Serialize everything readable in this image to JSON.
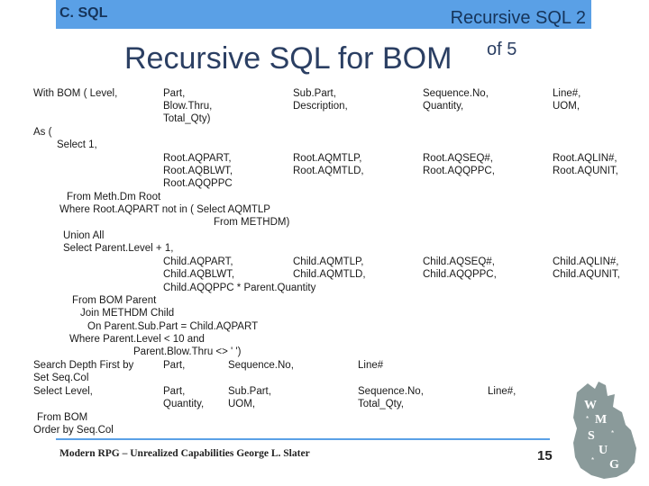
{
  "header": {
    "section": "C. SQL",
    "slide": "Recursive SQL 2"
  },
  "title": {
    "main": "Recursive SQL for BOM",
    "sup": "of 5"
  },
  "code": {
    "l1": [
      "With BOM ( Level,",
      "Part,",
      "Sub.Part,",
      "Sequence.No,",
      "Line#,"
    ],
    "l2": [
      "Blow.Thru,",
      "Description,",
      "Quantity,",
      "UOM,"
    ],
    "l3": "Total_Qty)",
    "l4": "As (",
    "l5": "Select 1,",
    "l6": [
      "Root.AQPART,",
      "Root.AQMTLP,",
      "Root.AQSEQ#,",
      "Root.AQLIN#,"
    ],
    "l7": [
      "Root.AQBLWT,",
      "Root.AQMTLD,",
      "Root.AQQPPC,",
      "Root.AQUNIT,"
    ],
    "l8": "Root.AQQPPC",
    "l9": "From   Meth.Dm Root",
    "l10": "Where   Root.AQPART not in ( Select AQMTLP",
    "l11": "From METHDM)",
    "l12": "Union All",
    "l13": "Select   Parent.Level + 1,",
    "l14": [
      "Child.AQPART,",
      "Child.AQMTLP,",
      "Child.AQSEQ#,",
      "Child.AQLIN#,"
    ],
    "l15": [
      "Child.AQBLWT,",
      "Child.AQMTLD,",
      "Child.AQQPPC,",
      "Child.AQUNIT,"
    ],
    "l16": "Child.AQQPPC * Parent.Quantity",
    "l17": "From   BOM Parent",
    "l18": "Join   METHDM Child",
    "l19": "On   Parent.Sub.Part = Child.AQPART",
    "l20": "Where   Parent.Level < 10 and",
    "l21": "Parent.Blow.Thru <> ' ')",
    "l22": [
      "Search Depth First by",
      "Part,",
      "Sequence.No,",
      "Line#"
    ],
    "l23": "Set Seq.Col",
    "l24": [
      "Select  Level,",
      "Part,",
      "Sub.Part,",
      "Sequence.No,",
      "Line#,"
    ],
    "l25": [
      "Quantity,",
      "UOM,",
      "Total_Qty,"
    ],
    "l26": "From BOM",
    "l27": "Order by Seq.Col"
  },
  "footer": {
    "text": "Modern RPG – Unrealized Capabilities  George L. Slater",
    "page": "15"
  },
  "colors": {
    "header": "#5aa0e6",
    "title": "#2b3f63",
    "logo": "#8a9a9a"
  }
}
